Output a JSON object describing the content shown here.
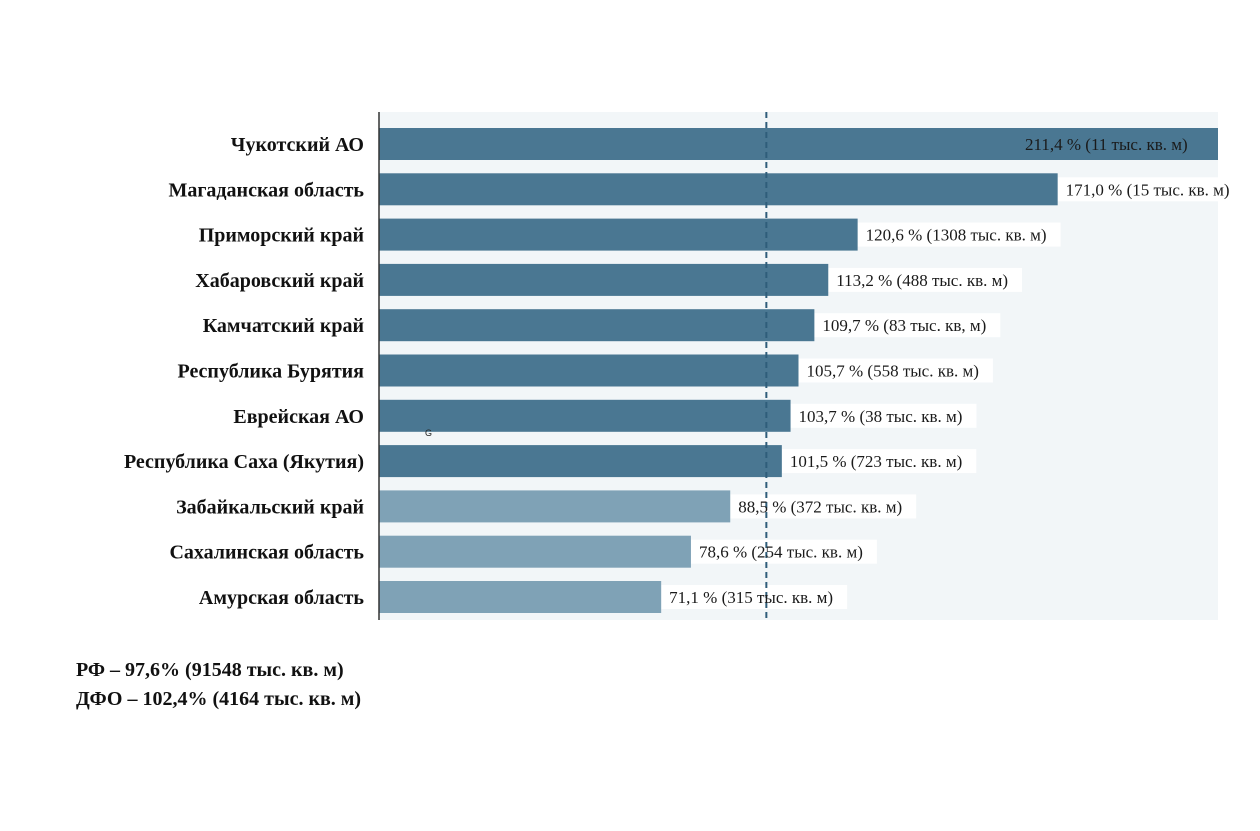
{
  "chart_data": {
    "type": "bar",
    "orientation": "horizontal",
    "reference_value": 97.6,
    "xlim": [
      0,
      211.4
    ],
    "categories": [
      "Чукотский АО",
      "Магаданская область",
      "Приморский край",
      "Хабаровский край",
      "Камчатский край",
      "Республика Бурятия",
      "Еврейская АО",
      "Республика Саха (Якутия)",
      "Забайкальский край",
      "Сахалинская область",
      "Амурская область"
    ],
    "values": [
      211.4,
      171.0,
      120.6,
      113.2,
      109.7,
      105.7,
      103.7,
      101.5,
      88.5,
      78.6,
      71.1
    ],
    "data_labels": [
      "211,4 % (11 тыс. кв. м)",
      "171,0 % (15 тыс. кв. м)",
      "120,6 % (1308 тыс. кв. м)",
      "113,2 % (488 тыс. кв. м)",
      "109,7 % (83 тыс. кв, м)",
      "105,7 % (558 тыс. кв. м)",
      "103,7 % (38 тыс. кв. м)",
      "101,5 % (723 тыс. кв. м)",
      "88,5 % (372 тыс. кв. м)",
      "78,6 % (254 тыс. кв. м)",
      "71,1 % (315 тыс. кв. м)"
    ],
    "stray_mark": "G",
    "colors": {
      "above": "#4a7792",
      "below": "#7fa2b6",
      "reference_line": "#2f5d7a",
      "plot_bg": "#f2f6f8"
    }
  },
  "summary": {
    "rf": "РФ – 97,6% (91548 тыс. кв. м)",
    "dfo": "ДФО – 102,4% (4164 тыс. кв. м)"
  }
}
